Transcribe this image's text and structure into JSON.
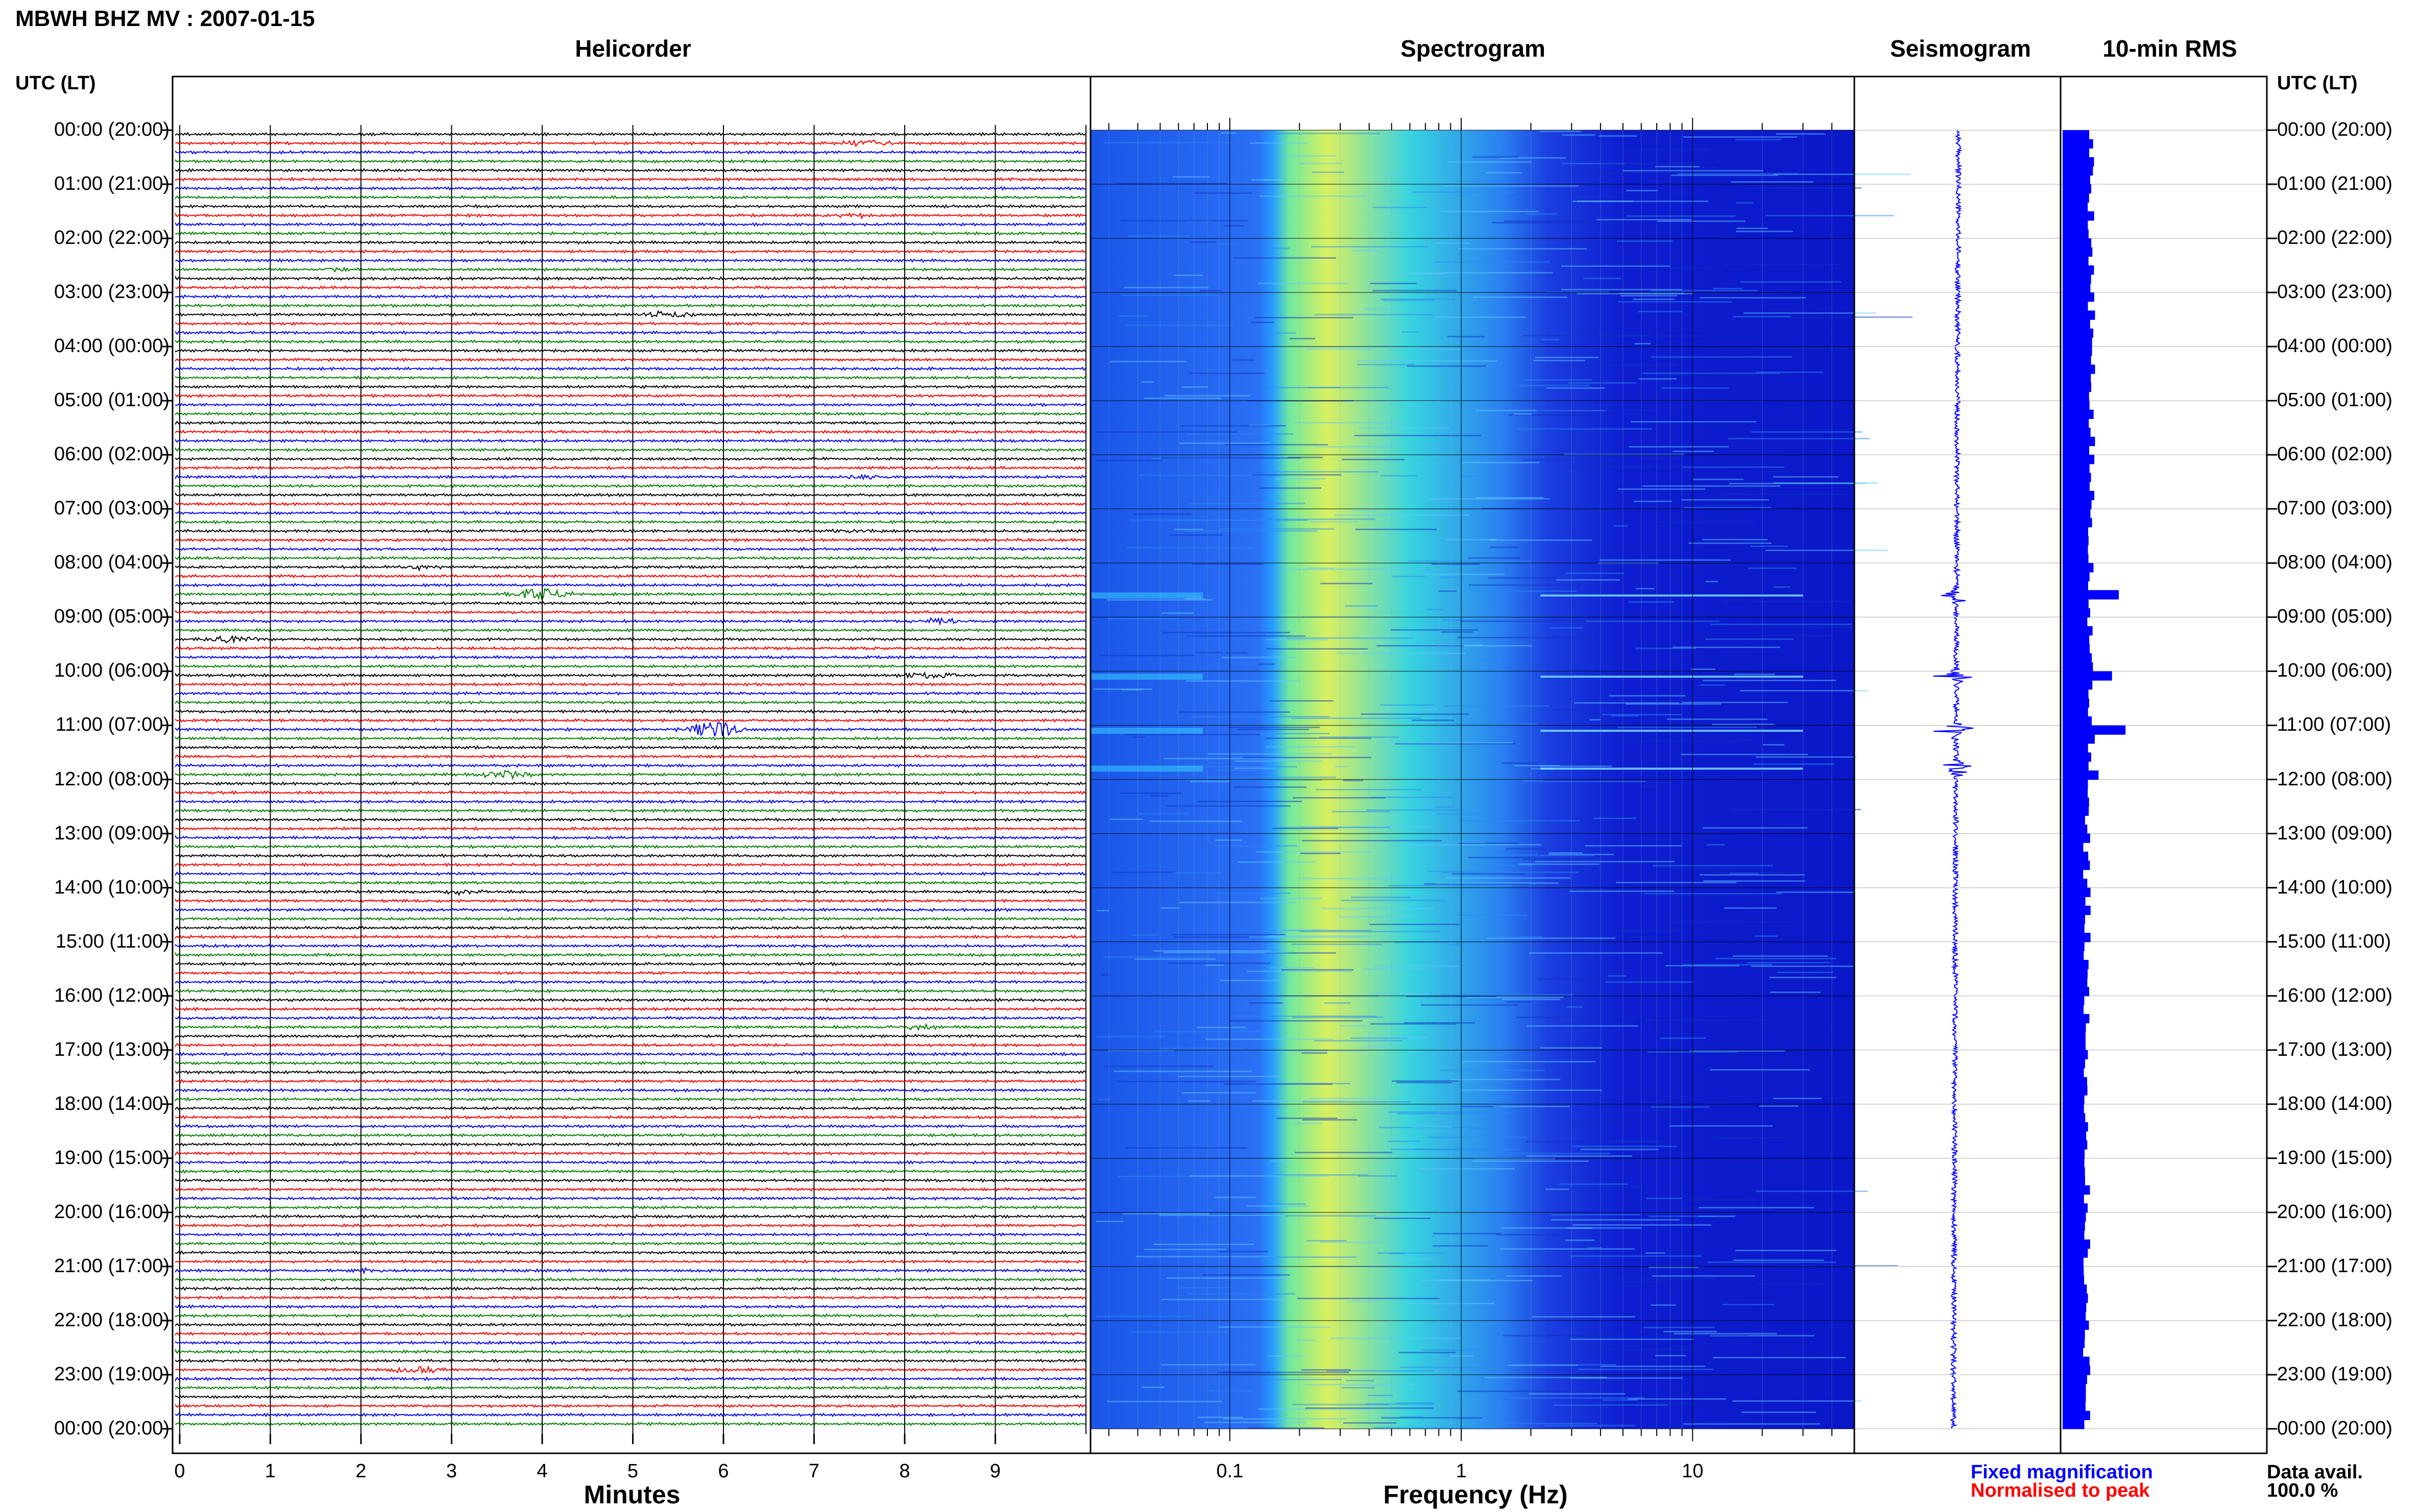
{
  "header": {
    "title": "MBWH BHZ MV : 2007-01-15",
    "tz_label_left": "UTC (LT)",
    "tz_label_right": "UTC (LT)"
  },
  "panels": {
    "helicorder": "Helicorder",
    "spectrogram": "Spectrogram",
    "seismogram": "Seismogram",
    "rms": "10-min RMS"
  },
  "time_labels": [
    "00:00 (20:00)",
    "01:00 (21:00)",
    "02:00 (22:00)",
    "03:00 (23:00)",
    "04:00 (00:00)",
    "05:00 (01:00)",
    "06:00 (02:00)",
    "07:00 (03:00)",
    "08:00 (04:00)",
    "09:00 (05:00)",
    "10:00 (06:00)",
    "11:00 (07:00)",
    "12:00 (08:00)",
    "13:00 (09:00)",
    "14:00 (10:00)",
    "15:00 (11:00)",
    "16:00 (12:00)",
    "17:00 (13:00)",
    "18:00 (14:00)",
    "19:00 (15:00)",
    "20:00 (16:00)",
    "21:00 (17:00)",
    "22:00 (18:00)",
    "23:00 (19:00)",
    "00:00 (20:00)"
  ],
  "colors": {
    "trace_cycle": [
      "#000000",
      "#ff0000",
      "#0000ff",
      "#008000"
    ],
    "rms_bar": "#0000ff",
    "seismo": "#0000ff",
    "fixed_magnification": "#0000ff",
    "normalised": "#ff0000"
  },
  "legend": {
    "fixed": "Fixed magnification",
    "normalised": "Normalised to peak"
  },
  "availability": {
    "label": "Data avail.",
    "value": "100.0 %"
  },
  "chart_data": [
    {
      "type": "line",
      "title": "Helicorder",
      "xlabel": "Minutes",
      "x_ticks": [
        "0",
        "1",
        "2",
        "3",
        "4",
        "5",
        "6",
        "7",
        "8",
        "9"
      ],
      "xlim": [
        0,
        10
      ],
      "rows_per_hour": 6,
      "hours": 24,
      "events": [
        {
          "hour": 0.2,
          "minute": 7.6,
          "color": "#0000ff",
          "amp": 0.5
        },
        {
          "hour": 1.5,
          "minute": 7.4,
          "color": "#ff0000",
          "amp": 0.25
        },
        {
          "hour": 2.5,
          "minute": 1.7,
          "color": "#008000",
          "amp": 0.25
        },
        {
          "hour": 3.33,
          "minute": 5.4,
          "color": "#000000",
          "amp": 0.45
        },
        {
          "hour": 6.33,
          "minute": 7.5,
          "color": "#0000ff",
          "amp": 0.3
        },
        {
          "hour": 7.33,
          "minute": 7.4,
          "color": "#000000",
          "amp": 0.25
        },
        {
          "hour": 8.0,
          "minute": 2.6,
          "color": "#000000",
          "amp": 0.3
        },
        {
          "hour": 8.5,
          "minute": 4.0,
          "color": "#008000",
          "amp": 0.9
        },
        {
          "hour": 9.0,
          "minute": 8.4,
          "color": "#0000ff",
          "amp": 0.4
        },
        {
          "hour": 9.33,
          "minute": 0.6,
          "color": "#000000",
          "amp": 0.5
        },
        {
          "hour": 10.0,
          "minute": 8.3,
          "color": "#000000",
          "amp": 0.6
        },
        {
          "hour": 11.0,
          "minute": 5.9,
          "color": "#0000ff",
          "amp": 1.2
        },
        {
          "hour": 11.83,
          "minute": 3.6,
          "color": "#008000",
          "amp": 0.55
        },
        {
          "hour": 14.0,
          "minute": 3.1,
          "color": "#008000",
          "amp": 0.3
        },
        {
          "hour": 16.5,
          "minute": 8.2,
          "color": "#008000",
          "amp": 0.3
        },
        {
          "hour": 21.0,
          "minute": 2.1,
          "color": "#0000ff",
          "amp": 0.3
        },
        {
          "hour": 22.9,
          "minute": 2.6,
          "color": "#0000ff",
          "amp": 0.45
        }
      ]
    },
    {
      "type": "heatmap",
      "title": "Spectrogram",
      "xlabel": "Frequency (Hz)",
      "x_scale": "log",
      "xlim": [
        0.025,
        50
      ],
      "x_ticks": [
        "0.1",
        "1",
        "10"
      ],
      "peak_band_hz": [
        0.18,
        0.6
      ],
      "hours": 24
    },
    {
      "type": "line",
      "title": "Seismogram",
      "event_hours": [
        8.6,
        10.1,
        11.1,
        11.8
      ]
    },
    {
      "type": "bar",
      "title": "10-min RMS",
      "orientation": "horizontal",
      "bins_per_hour": 6,
      "spike_hours": [
        {
          "hour": 8.5,
          "value": 2.5
        },
        {
          "hour": 10.0,
          "value": 2.2
        },
        {
          "hour": 11.0,
          "value": 2.8
        },
        {
          "hour": 11.8,
          "value": 1.6
        }
      ]
    }
  ]
}
